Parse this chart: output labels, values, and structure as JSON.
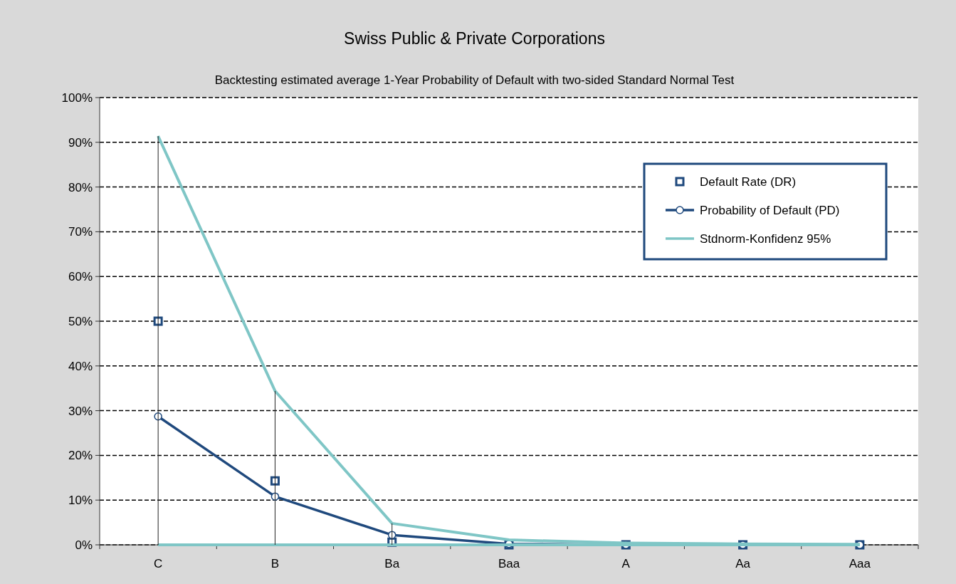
{
  "chart_data": {
    "type": "line",
    "title": "Swiss Public & Private Corporations",
    "subtitle": "Backtesting estimated average 1-Year Probability of Default with two-sided Standard Normal Test",
    "categories": [
      "C",
      "B",
      "Ba",
      "Baa",
      "A",
      "Aa",
      "Aaa"
    ],
    "series": [
      {
        "name": "Default Rate (DR)",
        "type": "scatter",
        "marker": "square",
        "color": "#1f497d",
        "values": [
          50,
          14.3,
          0.6,
          0,
          0,
          0,
          0
        ]
      },
      {
        "name": "Probability of Default (PD)",
        "marker": "circle",
        "color": "#1f497d",
        "values": [
          28.7,
          10.8,
          2.2,
          0.2,
          0,
          0,
          0
        ],
        "errors": [
          [
            0,
            91.4
          ],
          [
            0,
            34.4
          ],
          [
            0,
            4.8
          ],
          null,
          null,
          null,
          null
        ]
      },
      {
        "name": "Stdnorm-Konfidenz 95%",
        "marker": "none",
        "color": "#7fc6c6",
        "values": [
          91.4,
          34.4,
          4.8,
          1.1,
          0.4,
          0.2,
          0.1
        ]
      },
      {
        "marker": "none",
        "color": "#7fc6c6",
        "values": [
          0,
          0,
          0,
          0,
          0,
          0,
          0
        ]
      }
    ],
    "ylim": [
      0,
      100
    ],
    "yticks": [
      {
        "value": 0,
        "label": "0%"
      },
      {
        "value": 10,
        "label": "10%"
      },
      {
        "value": 20,
        "label": "20%"
      },
      {
        "value": 30,
        "label": "30%"
      },
      {
        "value": 40,
        "label": "40%"
      },
      {
        "value": 50,
        "label": "50%"
      },
      {
        "value": 60,
        "label": "60%"
      },
      {
        "value": 70,
        "label": "70%"
      },
      {
        "value": 80,
        "label": "80%"
      },
      {
        "value": 90,
        "label": "90%"
      },
      {
        "value": 100,
        "label": "100%"
      }
    ],
    "grid": "y",
    "legend": "top right"
  }
}
